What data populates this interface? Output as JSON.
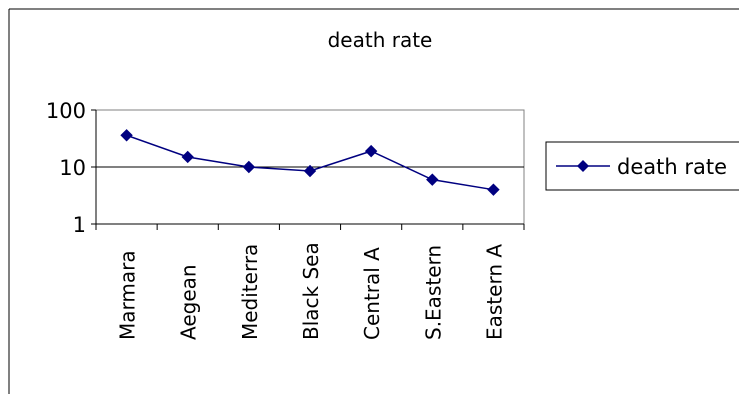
{
  "chart_data": {
    "type": "line",
    "title": "death rate",
    "xlabel": "",
    "ylabel": "",
    "y_scale": "log",
    "ylim": [
      1,
      100
    ],
    "y_ticks": [
      "100",
      "10",
      "1"
    ],
    "y_tick_values": [
      100,
      10,
      1
    ],
    "grid": "horizontal major gridlines",
    "legend_position": "right",
    "categories": [
      "Marmara",
      "Aegean",
      "Mediterra",
      "Black Sea",
      "Central A",
      "S.Eastern",
      "Eastern A"
    ],
    "series": [
      {
        "name": "death rate",
        "color": "#000080",
        "marker": "diamond",
        "values": [
          36,
          15,
          10,
          8.5,
          19,
          6,
          4
        ]
      }
    ]
  }
}
